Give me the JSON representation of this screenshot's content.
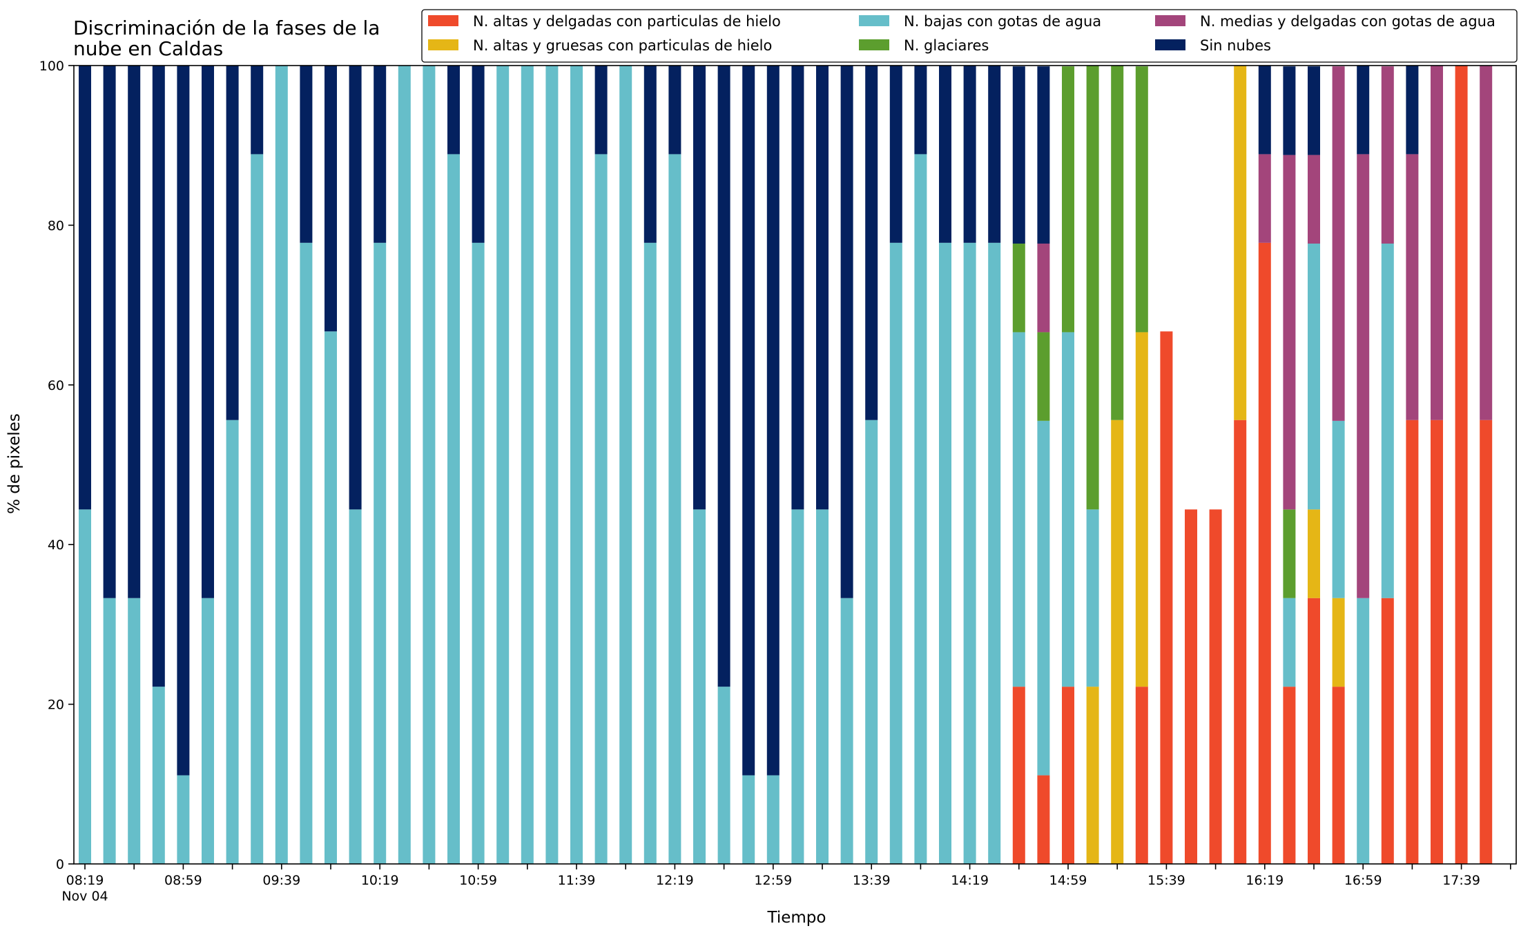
{
  "chart_data": {
    "type": "bar",
    "stacked": true,
    "title": "Discriminación de la fases de la\nnube en Caldas",
    "xlabel": "Tiempo",
    "ylabel": "% de pixeles",
    "ylim": [
      0,
      100
    ],
    "yticks": [
      0,
      20,
      40,
      60,
      80,
      100
    ],
    "xtick_labels": [
      {
        "index": 0,
        "label": "08:19",
        "sublabel": "Nov 04"
      },
      {
        "index": 4,
        "label": "08:59"
      },
      {
        "index": 8,
        "label": "09:39"
      },
      {
        "index": 12,
        "label": "10:19"
      },
      {
        "index": 16,
        "label": "10:59"
      },
      {
        "index": 20,
        "label": "11:39"
      },
      {
        "index": 24,
        "label": "12:19"
      },
      {
        "index": 28,
        "label": "12:59"
      },
      {
        "index": 32,
        "label": "13:39"
      },
      {
        "index": 36,
        "label": "14:19"
      },
      {
        "index": 40,
        "label": "14:59"
      },
      {
        "index": 44,
        "label": "15:39"
      },
      {
        "index": 48,
        "label": "16:19"
      },
      {
        "index": 52,
        "label": "16:59"
      },
      {
        "index": 56,
        "label": "17:39"
      }
    ],
    "grid": false,
    "legend_position": "top-right",
    "series": [
      {
        "name": "N. altas y delgadas con particulas de hielo",
        "color": "#ef4a2b",
        "values": [
          0,
          0,
          0,
          0,
          0,
          0,
          0,
          0,
          0,
          0,
          0,
          0,
          0,
          0,
          0,
          0,
          0,
          0,
          0,
          0,
          0,
          0,
          0,
          0,
          0,
          0,
          0,
          0,
          0,
          0,
          0,
          0,
          0,
          0,
          0,
          0,
          0,
          0,
          22.2,
          11.1,
          22.2,
          0,
          0,
          22.2,
          66.7,
          44.4,
          44.4,
          55.6,
          77.8,
          22.2,
          33.3,
          22.2,
          0,
          33.3,
          55.6,
          55.6,
          100,
          55.6
        ]
      },
      {
        "name": "N. altas y gruesas con particulas de hielo",
        "color": "#e5b616",
        "values": [
          0,
          0,
          0,
          0,
          0,
          0,
          0,
          0,
          0,
          0,
          0,
          0,
          0,
          0,
          0,
          0,
          0,
          0,
          0,
          0,
          0,
          0,
          0,
          0,
          0,
          0,
          0,
          0,
          0,
          0,
          0,
          0,
          0,
          0,
          0,
          0,
          0,
          0,
          0,
          0,
          0,
          22.2,
          55.6,
          44.4,
          0,
          0,
          0,
          44.4,
          0,
          0,
          11.1,
          11.1,
          0,
          0,
          0,
          0,
          0,
          0
        ]
      },
      {
        "name": "N. bajas con gotas de agua",
        "color": "#66bec9",
        "values": [
          44.4,
          33.3,
          33.3,
          22.2,
          11.1,
          33.3,
          55.6,
          88.9,
          100,
          77.8,
          66.7,
          44.4,
          77.8,
          100,
          100,
          88.9,
          77.8,
          100,
          100,
          100,
          100,
          88.9,
          100,
          77.8,
          88.9,
          44.4,
          22.2,
          11.1,
          11.1,
          44.4,
          44.4,
          33.3,
          55.6,
          77.8,
          88.9,
          77.8,
          77.8,
          77.8,
          44.4,
          44.4,
          44.4,
          22.2,
          0,
          0,
          0,
          0,
          0,
          0,
          0,
          11.1,
          33.3,
          22.2,
          33.3,
          44.4,
          0,
          0,
          0,
          0
        ]
      },
      {
        "name": "N. glaciares",
        "color": "#5c9e2e",
        "values": [
          0,
          0,
          0,
          0,
          0,
          0,
          0,
          0,
          0,
          0,
          0,
          0,
          0,
          0,
          0,
          0,
          0,
          0,
          0,
          0,
          0,
          0,
          0,
          0,
          0,
          0,
          0,
          0,
          0,
          0,
          0,
          0,
          0,
          0,
          0,
          0,
          0,
          0,
          11.1,
          11.1,
          33.3,
          55.6,
          44.4,
          33.3,
          0,
          0,
          0,
          0,
          0,
          11.1,
          0,
          0,
          0,
          0,
          0,
          0,
          0,
          0
        ]
      },
      {
        "name": "N. medias y delgadas con gotas de agua",
        "color": "#a3457b",
        "values": [
          0,
          0,
          0,
          0,
          0,
          0,
          0,
          0,
          0,
          0,
          0,
          0,
          0,
          0,
          0,
          0,
          0,
          0,
          0,
          0,
          0,
          0,
          0,
          0,
          0,
          0,
          0,
          0,
          0,
          0,
          0,
          0,
          0,
          0,
          0,
          0,
          0,
          0,
          0,
          11.1,
          0,
          0,
          0,
          0,
          0,
          0,
          0,
          0,
          11.1,
          44.4,
          11.1,
          44.4,
          55.6,
          22.2,
          33.3,
          44.4,
          0,
          44.4
        ]
      },
      {
        "name": "Sin nubes",
        "color": "#04215f",
        "values": [
          55.6,
          66.7,
          66.7,
          77.8,
          88.9,
          66.7,
          44.4,
          11.1,
          0,
          22.2,
          33.3,
          55.6,
          22.2,
          0,
          0,
          11.1,
          22.2,
          0,
          0,
          0,
          0,
          11.1,
          0,
          22.2,
          11.1,
          55.6,
          77.8,
          88.9,
          88.9,
          55.6,
          55.6,
          66.7,
          44.4,
          22.2,
          11.1,
          22.2,
          22.2,
          22.2,
          22.2,
          22.2,
          0,
          0,
          0,
          0,
          0,
          0,
          0,
          0,
          11.1,
          11.1,
          11.1,
          0,
          11.1,
          0,
          11.1,
          0,
          0,
          0
        ]
      }
    ]
  }
}
